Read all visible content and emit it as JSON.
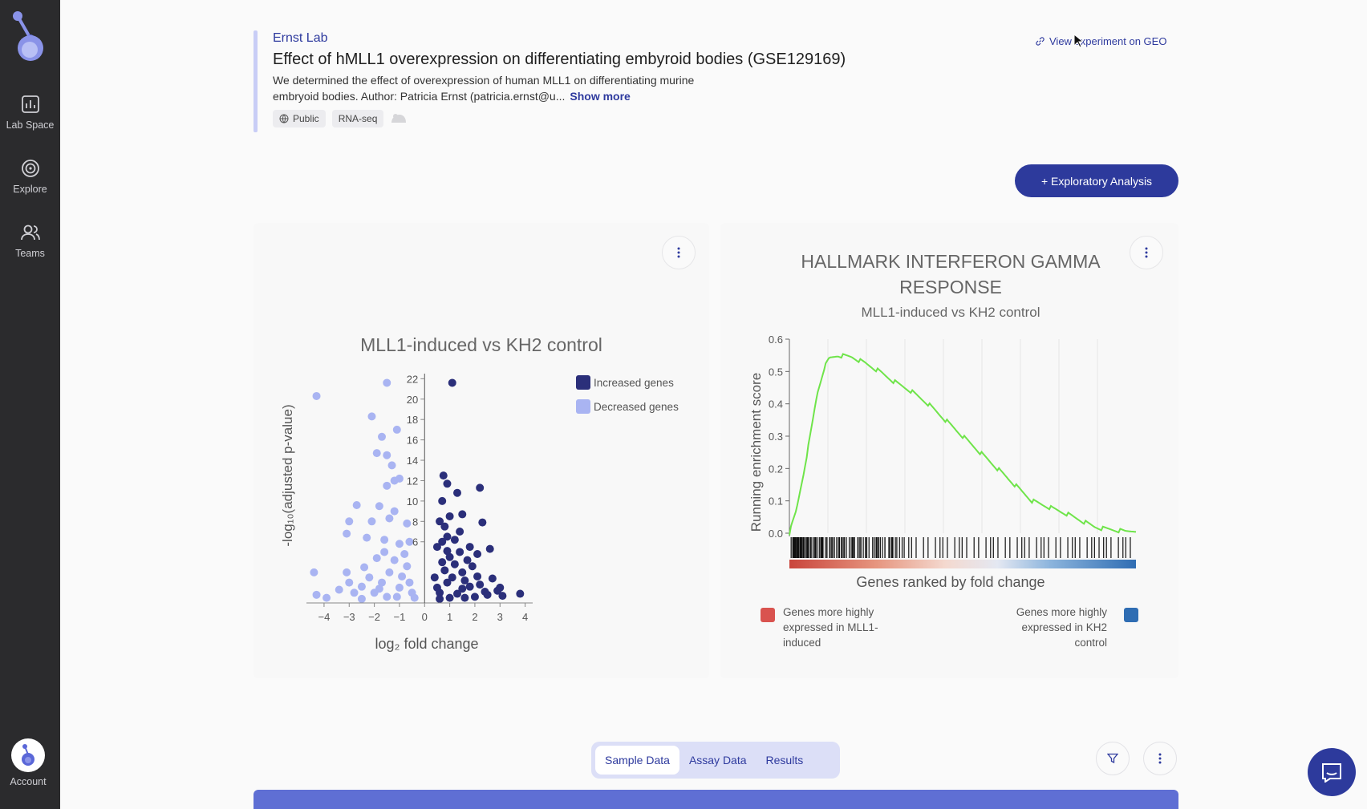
{
  "sidebar": {
    "items": [
      {
        "label": "Lab Space",
        "icon": "lab-space-icon"
      },
      {
        "label": "Explore",
        "icon": "explore-icon"
      },
      {
        "label": "Teams",
        "icon": "teams-icon"
      }
    ],
    "account_label": "Account"
  },
  "experiment": {
    "lab": "Ernst Lab",
    "title": "Effect of hMLL1 overexpression on differentiating embyroid bodies (GSE129169)",
    "description_line1": "We determined the effect of overexpression of human MLL1 on differentiating murine",
    "description_line2": "embryoid bodies. Author: Patricia Ernst (patricia.ernst@u...",
    "show_more": "Show more",
    "tags": [
      "Public",
      "RNA-seq"
    ],
    "geo_link": "View experiment on GEO"
  },
  "actions": {
    "exploratory_analysis": "+ Exploratory Analysis"
  },
  "colors": {
    "brand": "#2d3a9c",
    "increased": "#2b2f7a",
    "decreased": "#a9b4f2",
    "gsea_line": "#6fe44a",
    "mll1": "#d9534f",
    "kh2": "#2f6db3"
  },
  "chart_data": [
    {
      "type": "scatter",
      "title": "MLL1-induced vs KH2 control",
      "xlabel": "log₂ fold change",
      "ylabel": "-log₁₀(adjusted p-value)",
      "xlim": [
        -4.7,
        4.3
      ],
      "ylim": [
        0,
        22.5
      ],
      "xticks": [
        "−4",
        "−3",
        "−2",
        "−1",
        "0",
        "1",
        "2",
        "3",
        "4"
      ],
      "yticks": [
        "22",
        "20",
        "18",
        "16",
        "14",
        "12",
        "10",
        "8",
        "6"
      ],
      "legend_position": "top-right",
      "series": [
        {
          "name": "Increased genes",
          "points": [
            [
              1.1,
              21.6
            ],
            [
              2.2,
              11.3
            ],
            [
              0.75,
              12.5
            ],
            [
              0.9,
              11.7
            ],
            [
              0.7,
              10.0
            ],
            [
              1.3,
              10.8
            ],
            [
              1.0,
              8.5
            ],
            [
              1.5,
              8.7
            ],
            [
              2.3,
              7.9
            ],
            [
              1.4,
              7.0
            ],
            [
              0.6,
              8.0
            ],
            [
              0.9,
              6.5
            ],
            [
              2.6,
              5.3
            ],
            [
              1.8,
              5.5
            ],
            [
              2.1,
              4.8
            ],
            [
              0.7,
              4.0
            ],
            [
              1.2,
              3.8
            ],
            [
              1.5,
              3.0
            ],
            [
              2.7,
              2.4
            ],
            [
              3.0,
              1.5
            ],
            [
              3.8,
              0.9
            ],
            [
              3.1,
              0.7
            ],
            [
              2.4,
              1.1
            ],
            [
              1.8,
              1.6
            ],
            [
              0.6,
              1.0
            ],
            [
              0.9,
              2.0
            ],
            [
              0.5,
              1.5
            ],
            [
              1.3,
              0.9
            ],
            [
              2.0,
              0.6
            ],
            [
              0.6,
              0.4
            ],
            [
              1.0,
              0.5
            ],
            [
              1.6,
              0.5
            ],
            [
              2.2,
              1.8
            ],
            [
              0.4,
              2.5
            ],
            [
              1.1,
              2.5
            ],
            [
              0.8,
              3.2
            ],
            [
              1.6,
              2.2
            ],
            [
              2.5,
              0.8
            ],
            [
              1.9,
              3.6
            ],
            [
              0.7,
              6.0
            ],
            [
              1.4,
              5.0
            ],
            [
              1.0,
              4.5
            ],
            [
              0.5,
              5.5
            ],
            [
              2.1,
              2.6
            ],
            [
              1.7,
              4.2
            ],
            [
              1.2,
              6.2
            ],
            [
              0.8,
              7.5
            ],
            [
              0.9,
              5.1
            ],
            [
              1.5,
              1.4
            ],
            [
              2.9,
              1.2
            ]
          ]
        },
        {
          "name": "Decreased genes",
          "points": [
            [
              -4.3,
              20.3
            ],
            [
              -1.5,
              21.6
            ],
            [
              -2.1,
              18.3
            ],
            [
              -1.1,
              17.0
            ],
            [
              -1.7,
              16.3
            ],
            [
              -1.9,
              14.7
            ],
            [
              -1.5,
              14.5
            ],
            [
              -1.3,
              13.5
            ],
            [
              -1.0,
              12.2
            ],
            [
              -1.2,
              12.0
            ],
            [
              -1.5,
              11.5
            ],
            [
              -2.7,
              9.6
            ],
            [
              -1.8,
              9.5
            ],
            [
              -1.2,
              9.0
            ],
            [
              -3.0,
              8.0
            ],
            [
              -2.1,
              8.0
            ],
            [
              -1.4,
              8.3
            ],
            [
              -0.7,
              7.8
            ],
            [
              -3.1,
              6.8
            ],
            [
              -2.3,
              6.4
            ],
            [
              -1.6,
              6.2
            ],
            [
              -1.0,
              5.8
            ],
            [
              -0.6,
              6.0
            ],
            [
              -4.4,
              3.0
            ],
            [
              -3.1,
              3.0
            ],
            [
              -2.4,
              3.5
            ],
            [
              -1.9,
              4.4
            ],
            [
              -1.2,
              4.2
            ],
            [
              -0.7,
              3.6
            ],
            [
              -3.0,
              2.0
            ],
            [
              -2.5,
              1.6
            ],
            [
              -1.7,
              2.0
            ],
            [
              -0.9,
              2.6
            ],
            [
              -4.3,
              0.8
            ],
            [
              -3.9,
              0.5
            ],
            [
              -2.5,
              0.4
            ],
            [
              -1.5,
              0.6
            ],
            [
              -0.5,
              1.0
            ],
            [
              -2.0,
              1.0
            ],
            [
              -1.0,
              1.5
            ],
            [
              -3.4,
              1.3
            ],
            [
              -1.4,
              3.0
            ],
            [
              -0.8,
              4.8
            ],
            [
              -1.6,
              5.0
            ],
            [
              -2.2,
              2.5
            ],
            [
              -0.6,
              2.0
            ],
            [
              -1.1,
              0.6
            ],
            [
              -0.4,
              0.5
            ],
            [
              -1.8,
              1.4
            ],
            [
              -2.8,
              1.0
            ]
          ]
        }
      ]
    },
    {
      "type": "line",
      "title": "HALLMARK INTERFERON GAMMA RESPONSE",
      "subtitle": "MLL1-induced vs KH2 control",
      "xlabel": "Genes ranked by fold change",
      "ylabel": "Running enrichment score",
      "ylim": [
        0,
        0.6
      ],
      "yticks": [
        "0.6",
        "0.5",
        "0.4",
        "0.3",
        "0.2",
        "0.1",
        "0.0"
      ],
      "x": [
        0,
        0.02,
        0.04,
        0.06,
        0.08,
        0.1,
        0.115,
        0.14,
        0.18,
        0.22,
        0.26,
        0.3,
        0.35,
        0.4,
        0.45,
        0.5,
        0.55,
        0.6,
        0.65,
        0.7,
        0.75,
        0.8,
        0.85,
        0.88,
        0.9,
        0.94,
        0.97,
        1.0
      ],
      "y": [
        0.0,
        0.07,
        0.18,
        0.3,
        0.43,
        0.51,
        0.54,
        0.55,
        0.545,
        0.525,
        0.5,
        0.47,
        0.44,
        0.4,
        0.35,
        0.3,
        0.25,
        0.2,
        0.15,
        0.1,
        0.08,
        0.06,
        0.035,
        0.02,
        0.015,
        0.01,
        0.005,
        0.01
      ],
      "legend": {
        "left": "Genes more highly expressed in MLL1-induced",
        "right": "Genes more highly expressed in KH2 control"
      }
    }
  ],
  "gsea_legend": {
    "left_line1": "Genes more highly",
    "left_line2": "expressed in MLL1-",
    "left_line3": "induced",
    "right_line1": "Genes more highly",
    "right_line2": "expressed in KH2",
    "right_line3": "control"
  },
  "data_tabs": [
    "Sample Data",
    "Assay Data",
    "Results"
  ]
}
